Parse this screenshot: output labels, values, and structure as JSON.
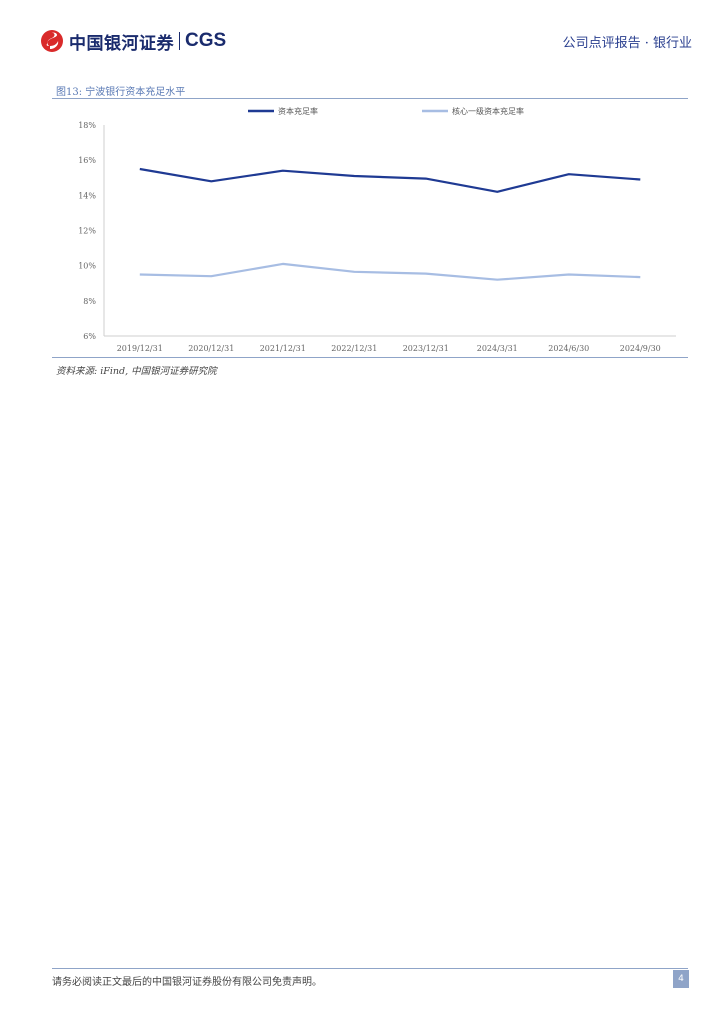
{
  "header": {
    "logo_cn": "中国银河证券",
    "logo_en": "CGS",
    "report_type": "公司点评报告 · 银行业"
  },
  "figure": {
    "title": "图13: 宁波银行资本充足水平",
    "source": "资料来源: iFind, 中国银河证券研究院"
  },
  "chart_data": {
    "type": "line",
    "categories": [
      "2019/12/31",
      "2020/12/31",
      "2021/12/31",
      "2022/12/31",
      "2023/12/31",
      "2024/3/31",
      "2024/6/30",
      "2024/9/30"
    ],
    "series": [
      {
        "name": "资本充足率",
        "color": "#1f3a93",
        "values": [
          15.5,
          14.8,
          15.4,
          15.1,
          14.95,
          14.2,
          15.2,
          14.9
        ]
      },
      {
        "name": "核心一级资本充足率",
        "color": "#a7bde3",
        "values": [
          9.5,
          9.4,
          10.1,
          9.65,
          9.55,
          9.2,
          9.5,
          9.35
        ]
      }
    ],
    "y_ticks": [
      "6%",
      "8%",
      "10%",
      "12%",
      "14%",
      "16%",
      "18%"
    ],
    "ylim": [
      6,
      18
    ],
    "grid": false,
    "legend_position": "top"
  },
  "footer": {
    "disclaimer": "请务必阅读正文最后的中国银河证券股份有限公司免责声明。",
    "page": "4"
  }
}
